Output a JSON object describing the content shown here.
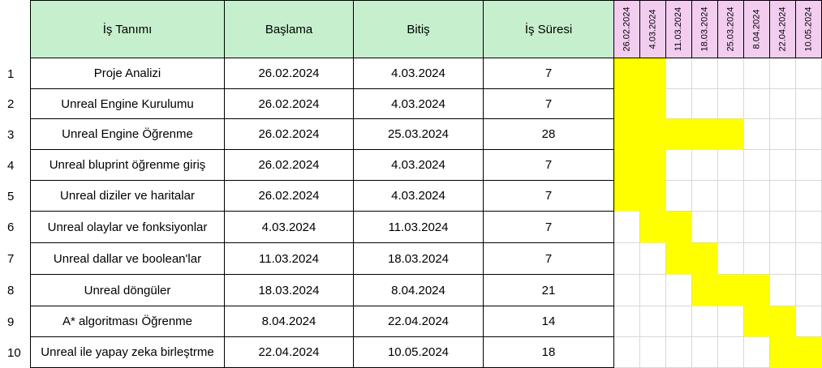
{
  "headers": {
    "task": "İş Tanımı",
    "start": "Başlama",
    "end": "Bitiş",
    "duration": "İş Süresi"
  },
  "date_columns": [
    "26.02.2024",
    "4.03.2024",
    "11.03.2024",
    "18.03.2024",
    "25.03.2024",
    "8.04.2024",
    "22.04.2024",
    "10.05.2024"
  ],
  "rows": [
    {
      "num": "1",
      "task": "Proje Analizi",
      "start": "26.02.2024",
      "end": "4.03.2024",
      "duration": "7",
      "bar_start": 0,
      "bar_end": 2
    },
    {
      "num": "2",
      "task": "Unreal Engine Kurulumu",
      "start": "26.02.2024",
      "end": "4.03.2024",
      "duration": "7",
      "bar_start": 0,
      "bar_end": 2
    },
    {
      "num": "3",
      "task": "Unreal Engine Öğrenme",
      "start": "26.02.2024",
      "end": "25.03.2024",
      "duration": "28",
      "bar_start": 0,
      "bar_end": 5
    },
    {
      "num": "4",
      "task": "Unreal bluprint öğrenme giriş",
      "start": "26.02.2024",
      "end": "4.03.2024",
      "duration": "7",
      "bar_start": 0,
      "bar_end": 2
    },
    {
      "num": "5",
      "task": "Unreal diziler ve haritalar",
      "start": "26.02.2024",
      "end": "4.03.2024",
      "duration": "7",
      "bar_start": 0,
      "bar_end": 2
    },
    {
      "num": "6",
      "task": "Unreal olaylar ve fonksiyonlar",
      "start": "4.03.2024",
      "end": "11.03.2024",
      "duration": "7",
      "bar_start": 1,
      "bar_end": 3
    },
    {
      "num": "7",
      "task": "Unreal dallar ve boolean'lar",
      "start": "11.03.2024",
      "end": "18.03.2024",
      "duration": "7",
      "bar_start": 2,
      "bar_end": 4
    },
    {
      "num": "8",
      "task": "Unreal döngüler",
      "start": "18.03.2024",
      "end": "8.04.2024",
      "duration": "21",
      "bar_start": 3,
      "bar_end": 6
    },
    {
      "num": "9",
      "task": "A* algoritması Öğrenme",
      "start": "8.04.2024",
      "end": "22.04.2024",
      "duration": "14",
      "bar_start": 5,
      "bar_end": 7
    },
    {
      "num": "10",
      "task": "Unreal ile yapay zeka birleştrme",
      "start": "22.04.2024",
      "end": "10.05.2024",
      "duration": "18",
      "bar_start": 6,
      "bar_end": 8
    }
  ],
  "colors": {
    "header_bg": "#c6efce",
    "date_header_bg": "#f2cdf0",
    "bar": "#ffff00"
  }
}
